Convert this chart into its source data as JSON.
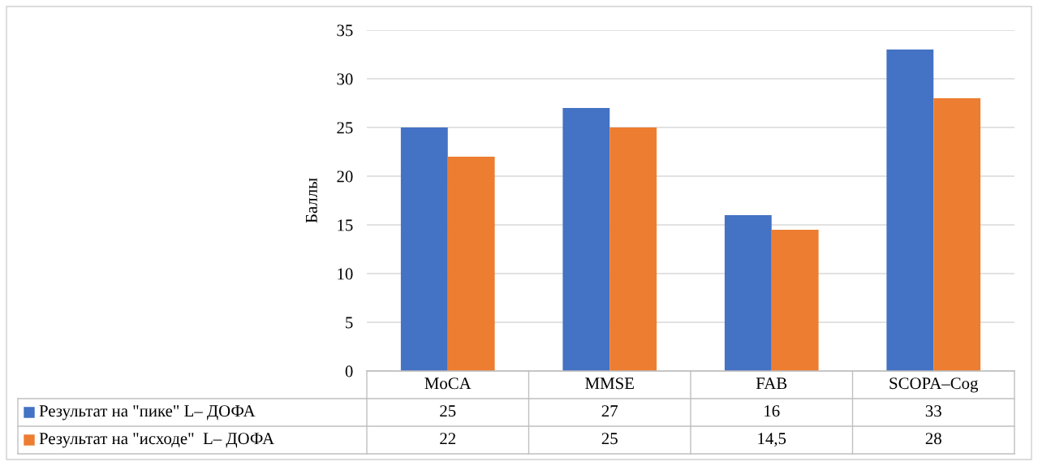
{
  "chart_data": {
    "type": "bar",
    "ylabel": "Баллы",
    "categories": [
      "MoCA",
      "MMSE",
      "FAB",
      "SCOPA–Cog"
    ],
    "series": [
      {
        "name": "Результат на \"пике\" L– ДОФА",
        "color": "#4472c4",
        "values": [
          25,
          27,
          16,
          33
        ],
        "value_labels": [
          "25",
          "27",
          "16",
          "33"
        ]
      },
      {
        "name": "Результат на \"исходе\"  L– ДОФА",
        "color": "#ed7d31",
        "values": [
          22,
          25,
          14.5,
          28
        ],
        "value_labels": [
          "22",
          "25",
          "14,5",
          "28"
        ]
      }
    ],
    "ylim": [
      0,
      35
    ],
    "yticks": [
      0,
      5,
      10,
      15,
      20,
      25,
      30,
      35
    ],
    "grid": "y",
    "legend": "bottom"
  }
}
